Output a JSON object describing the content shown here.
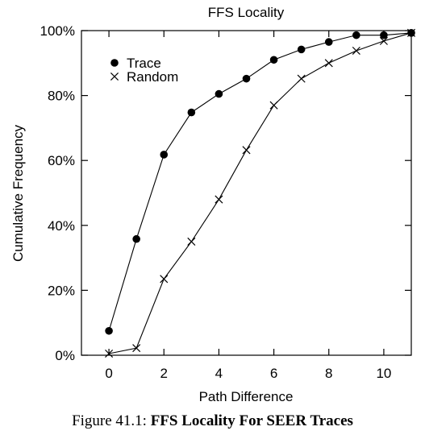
{
  "chart_data": {
    "type": "line",
    "title": "FFS Locality",
    "xlabel": "Path Difference",
    "ylabel": "Cumulative Frequency",
    "xlim": [
      -1,
      11
    ],
    "ylim": [
      0,
      100
    ],
    "x_ticks": [
      0,
      2,
      4,
      6,
      8,
      10
    ],
    "y_ticks": [
      0,
      20,
      40,
      60,
      80,
      100
    ],
    "x_tick_labels": [
      "0",
      "2",
      "4",
      "6",
      "8",
      "10"
    ],
    "y_tick_labels": [
      "0%",
      "20%",
      "40%",
      "60%",
      "80%",
      "100%"
    ],
    "grid": false,
    "legend_position": "top-left",
    "series": [
      {
        "name": "Trace",
        "marker": "filled-circle",
        "x": [
          0,
          1,
          2,
          3,
          4,
          5,
          6,
          7,
          8,
          9,
          10,
          11
        ],
        "y": [
          7.5,
          35.8,
          61.8,
          74.8,
          80.5,
          85.2,
          91.0,
          94.2,
          96.5,
          98.6,
          98.6,
          99.3
        ]
      },
      {
        "name": "Random",
        "marker": "cross",
        "x": [
          0,
          1,
          2,
          3,
          4,
          5,
          6,
          7,
          8,
          9,
          10,
          11
        ],
        "y": [
          0.5,
          2.2,
          23.5,
          35.0,
          48.0,
          63.2,
          77.0,
          85.2,
          90.0,
          93.8,
          96.8,
          99.3
        ]
      }
    ]
  },
  "caption": {
    "prefix": "Figure 41.1: ",
    "bold": "FFS Locality For SEER Traces"
  }
}
